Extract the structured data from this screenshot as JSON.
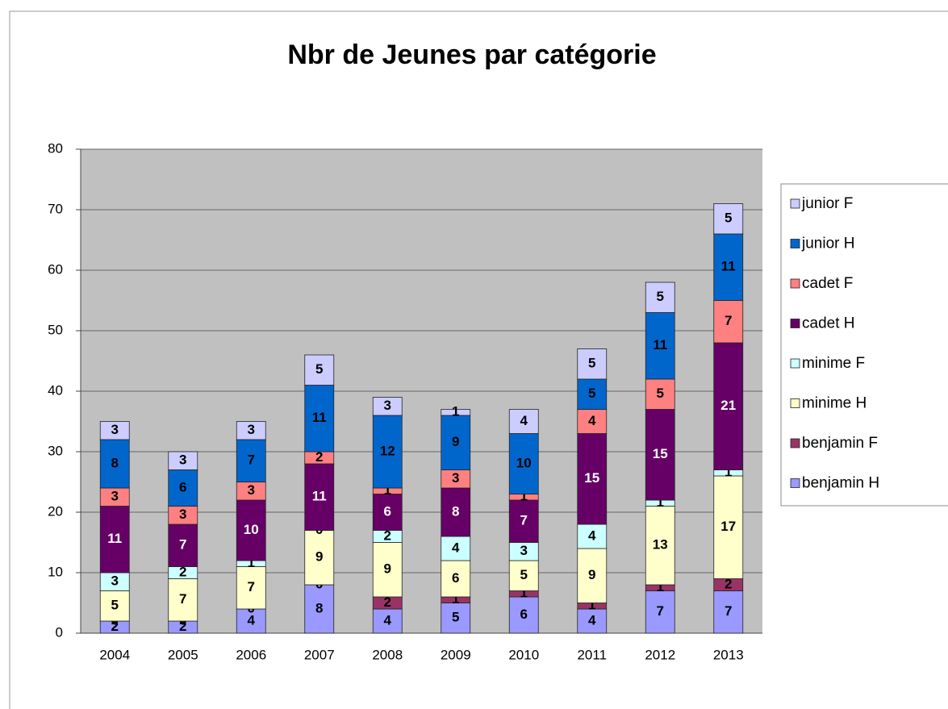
{
  "chart_data": {
    "type": "stacked_bar",
    "title": "Nbr de Jeunes par catégorie",
    "categories": [
      "2004",
      "2005",
      "2006",
      "2007",
      "2008",
      "2009",
      "2010",
      "2011",
      "2012",
      "2013"
    ],
    "series": [
      {
        "name": "benjamin H",
        "color": "#9999ff",
        "values": [
          2,
          2,
          4,
          8,
          4,
          5,
          6,
          4,
          7,
          7
        ]
      },
      {
        "name": "benjamin F",
        "color": "#993366",
        "values": [
          0,
          0,
          0,
          0,
          2,
          1,
          1,
          1,
          1,
          2
        ]
      },
      {
        "name": "minime H",
        "color": "#ffffcc",
        "values": [
          5,
          7,
          7,
          9,
          9,
          6,
          5,
          9,
          13,
          17
        ]
      },
      {
        "name": "minime F",
        "color": "#ccffff",
        "values": [
          3,
          2,
          1,
          0,
          2,
          4,
          3,
          4,
          1,
          1
        ]
      },
      {
        "name": "cadet H",
        "color": "#660066",
        "values": [
          11,
          7,
          10,
          11,
          6,
          8,
          7,
          15,
          15,
          21
        ]
      },
      {
        "name": "cadet F",
        "color": "#ff8080",
        "values": [
          3,
          3,
          3,
          2,
          1,
          3,
          1,
          4,
          5,
          7
        ]
      },
      {
        "name": "junior H",
        "color": "#0066cc",
        "values": [
          8,
          6,
          7,
          11,
          12,
          9,
          10,
          5,
          11,
          11
        ]
      },
      {
        "name": "junior F",
        "color": "#ccccff",
        "values": [
          3,
          3,
          3,
          5,
          3,
          1,
          4,
          5,
          5,
          5
        ]
      }
    ],
    "ylim": [
      0,
      80
    ],
    "yticks": [
      0,
      10,
      20,
      30,
      40,
      50,
      60,
      70,
      80
    ],
    "grid": true,
    "legend": "right"
  }
}
